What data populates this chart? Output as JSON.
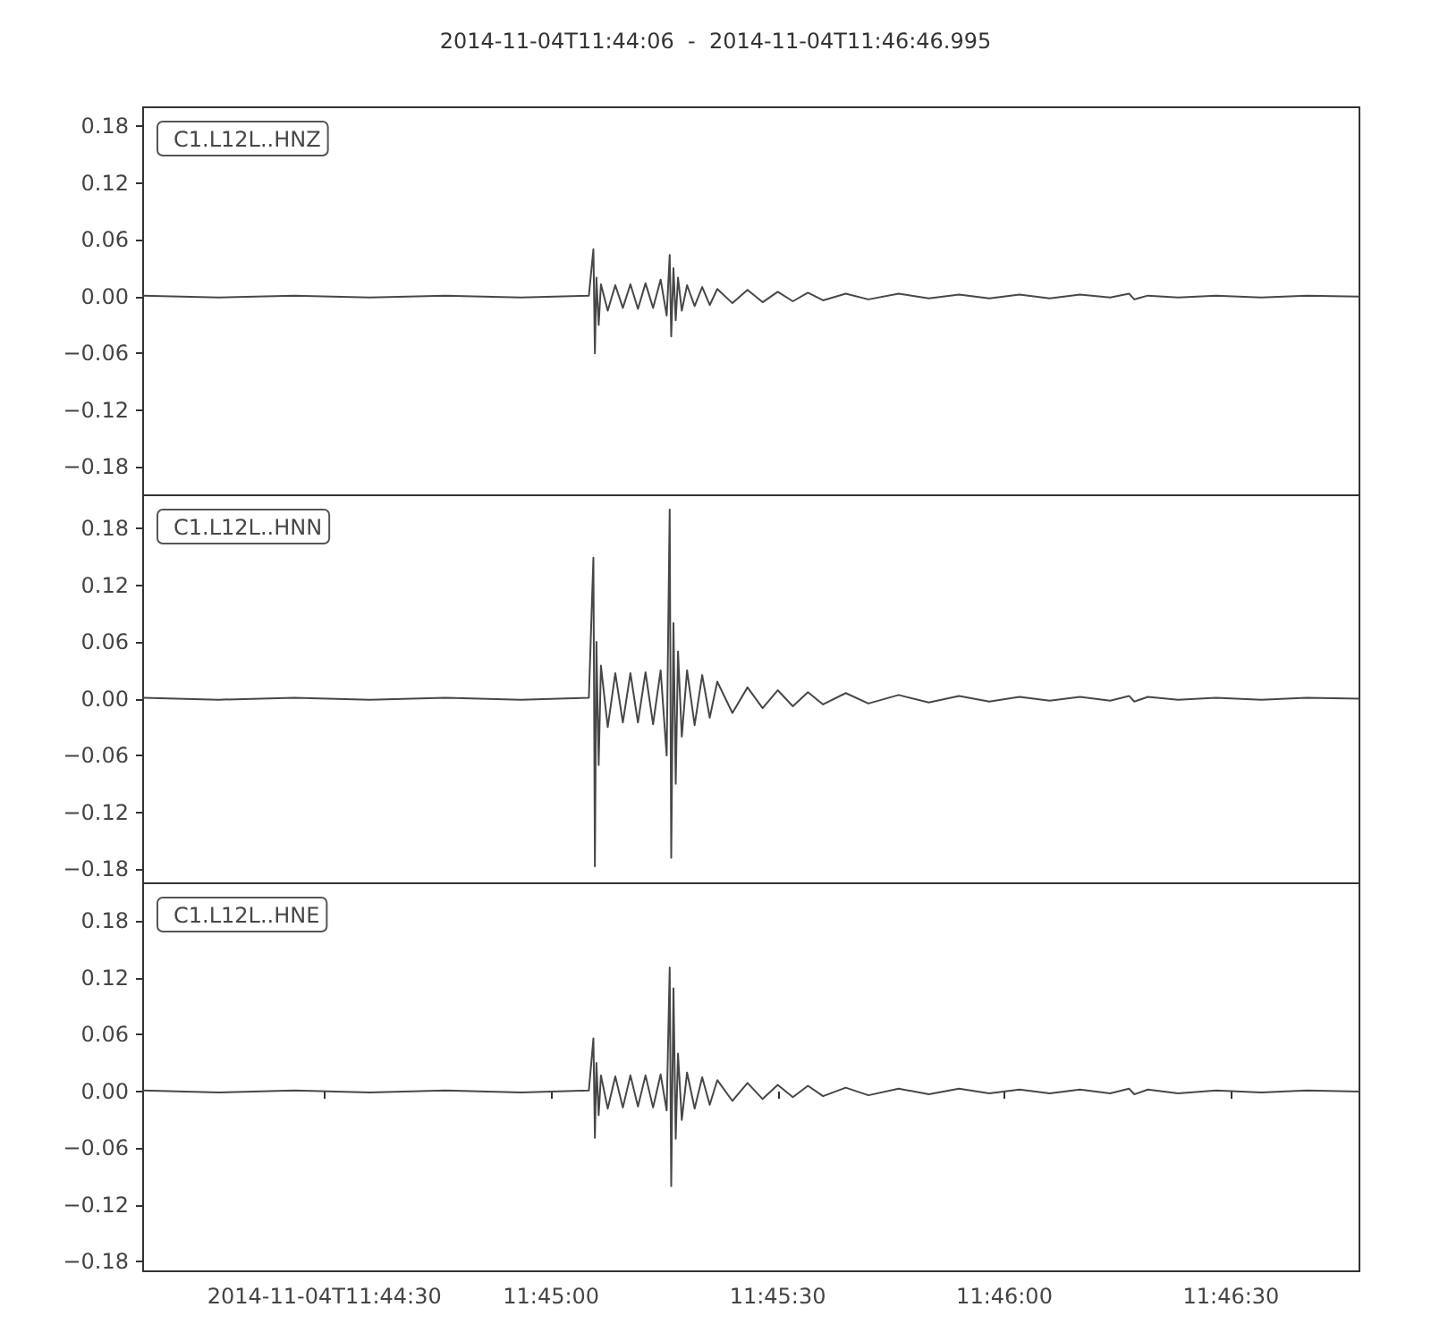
{
  "chart_data": [
    {
      "type": "line",
      "title": "2014-11-04T11:44:06  -  2014-11-04T11:46:46.995",
      "x": [
        11.735,
        11.737778,
        11.740556,
        11.743333,
        11.746111,
        11.748889,
        11.751389,
        11.751556,
        11.751611,
        11.751667,
        11.75175,
        11.751833,
        11.752083,
        11.752361,
        11.752639,
        11.752917,
        11.753194,
        11.753472,
        11.75375,
        11.754028,
        11.75425,
        11.754361,
        11.754417,
        11.7545,
        11.754583,
        11.754667,
        11.754806,
        11.755,
        11.755278,
        11.755556,
        11.755833,
        11.756111,
        11.756667,
        11.757222,
        11.757778,
        11.758333,
        11.758889,
        11.759444,
        11.76,
        11.760833,
        11.761667,
        11.762778,
        11.763889,
        11.765,
        11.766111,
        11.767222,
        11.768333,
        11.769444,
        11.770556,
        11.77125,
        11.771444,
        11.771944,
        11.773056,
        11.774444,
        11.776111,
        11.777778,
        11.779721
      ],
      "series": [
        {
          "name": "C1.L12L..HNZ",
          "color": "#474747",
          "values": [
            0.001,
            -0.001,
            0.001,
            -0.001,
            0.001,
            -0.001,
            0.001,
            0.05,
            -0.06,
            0.02,
            -0.03,
            0.013,
            -0.015,
            0.012,
            -0.012,
            0.013,
            -0.013,
            0.014,
            -0.012,
            0.018,
            -0.02,
            0.044,
            -0.042,
            0.03,
            -0.025,
            0.02,
            -0.015,
            0.012,
            -0.01,
            0.01,
            -0.009,
            0.008,
            -0.007,
            0.007,
            -0.006,
            0.005,
            -0.005,
            0.004,
            -0.004,
            0.003,
            -0.003,
            0.003,
            -0.002,
            0.002,
            -0.002,
            0.002,
            -0.002,
            0.002,
            -0.001,
            0.003,
            -0.003,
            0.001,
            -0.001,
            0.001,
            -0.001,
            0.001,
            0
          ]
        }
      ],
      "xlim": [
        11.735,
        11.779721
      ],
      "ylim": [
        -0.21,
        0.2
      ],
      "yticks": [
        {
          "value": -0.18,
          "label": "−0.18"
        },
        {
          "value": -0.12,
          "label": "−0.12"
        },
        {
          "value": -0.06,
          "label": "−0.06"
        },
        {
          "value": 0,
          "label": "0.00"
        },
        0.06,
        0.12,
        0.18
      ],
      "tick_labels": "y",
      "legend": "top left"
    },
    {
      "type": "line",
      "x": [
        11.735,
        11.737778,
        11.740556,
        11.743333,
        11.746111,
        11.748889,
        11.751389,
        11.751556,
        11.751611,
        11.751667,
        11.75175,
        11.751833,
        11.752083,
        11.752361,
        11.752639,
        11.752917,
        11.753194,
        11.753472,
        11.75375,
        11.754028,
        11.75425,
        11.754361,
        11.754417,
        11.7545,
        11.754583,
        11.754667,
        11.754806,
        11.755,
        11.755278,
        11.755556,
        11.755833,
        11.756111,
        11.756667,
        11.757222,
        11.757778,
        11.758333,
        11.758889,
        11.759444,
        11.76,
        11.760833,
        11.761667,
        11.762778,
        11.763889,
        11.765,
        11.766111,
        11.767222,
        11.768333,
        11.769444,
        11.770556,
        11.77125,
        11.771444,
        11.771944,
        11.773056,
        11.774444,
        11.776111,
        11.777778,
        11.779721
      ],
      "series": [
        {
          "name": "C1.L12L..HNN",
          "color": "#474747",
          "values": [
            0.001,
            -0.001,
            0.001,
            -0.001,
            0.001,
            -0.001,
            0.001,
            0.149,
            -0.177,
            0.06,
            -0.07,
            0.035,
            -0.03,
            0.027,
            -0.025,
            0.027,
            -0.025,
            0.028,
            -0.027,
            0.03,
            -0.06,
            0.2,
            -0.168,
            0.08,
            -0.09,
            0.05,
            -0.04,
            0.03,
            -0.028,
            0.025,
            -0.02,
            0.018,
            -0.015,
            0.012,
            -0.01,
            0.009,
            -0.008,
            0.007,
            -0.006,
            0.006,
            -0.005,
            0.004,
            -0.004,
            0.003,
            -0.003,
            0.002,
            -0.002,
            0.002,
            -0.002,
            0.003,
            -0.003,
            0.002,
            -0.001,
            0.001,
            -0.001,
            0.001,
            0
          ]
        }
      ],
      "xlim": [
        11.735,
        11.779721
      ],
      "ylim": [
        -0.195,
        0.215
      ],
      "yticks": [
        {
          "value": -0.18,
          "label": "−0.18"
        },
        {
          "value": -0.12,
          "label": "−0.12"
        },
        {
          "value": -0.06,
          "label": "−0.06"
        },
        {
          "value": 0,
          "label": "0.00"
        },
        0.06,
        0.12,
        0.18
      ],
      "tick_labels": "y",
      "legend": "top left"
    },
    {
      "type": "line",
      "x": [
        11.735,
        11.737778,
        11.740556,
        11.743333,
        11.746111,
        11.748889,
        11.751389,
        11.751556,
        11.751611,
        11.751667,
        11.75175,
        11.751833,
        11.752083,
        11.752361,
        11.752639,
        11.752917,
        11.753194,
        11.753472,
        11.75375,
        11.754028,
        11.75425,
        11.754361,
        11.754417,
        11.7545,
        11.754583,
        11.754667,
        11.754806,
        11.755,
        11.755278,
        11.755556,
        11.755833,
        11.756111,
        11.756667,
        11.757222,
        11.757778,
        11.758333,
        11.758889,
        11.759444,
        11.76,
        11.760833,
        11.761667,
        11.762778,
        11.763889,
        11.765,
        11.766111,
        11.767222,
        11.768333,
        11.769444,
        11.770556,
        11.77125,
        11.771444,
        11.771944,
        11.773056,
        11.774444,
        11.776111,
        11.777778,
        11.779721
      ],
      "series": [
        {
          "name": "C1.L12L..HNE",
          "color": "#474747",
          "values": [
            0.001,
            -0.001,
            0.001,
            -0.001,
            0.001,
            -0.001,
            0.001,
            0.056,
            -0.049,
            0.03,
            -0.025,
            0.017,
            -0.018,
            0.016,
            -0.017,
            0.017,
            -0.016,
            0.017,
            -0.017,
            0.018,
            -0.02,
            0.131,
            -0.1,
            0.109,
            -0.05,
            0.04,
            -0.03,
            0.02,
            -0.018,
            0.015,
            -0.014,
            0.012,
            -0.01,
            0.009,
            -0.008,
            0.007,
            -0.006,
            0.006,
            -0.005,
            0.004,
            -0.004,
            0.003,
            -0.003,
            0.003,
            -0.002,
            0.002,
            -0.002,
            0.002,
            -0.002,
            0.003,
            -0.003,
            0.002,
            -0.002,
            0.001,
            -0.001,
            0.001,
            0
          ]
        }
      ],
      "xlim": [
        11.735,
        11.779721
      ],
      "xticks": [
        {
          "value": 11.741667,
          "label": "2014-11-04T11:44:30"
        },
        {
          "value": 11.75,
          "label": "11:45:00"
        },
        {
          "value": 11.758333,
          "label": "11:45:30"
        },
        {
          "value": 11.766667,
          "label": "11:46:00"
        },
        {
          "value": 11.775,
          "label": "11:46:30"
        }
      ],
      "ylim": [
        -0.19,
        0.22
      ],
      "yticks": [
        {
          "value": -0.18,
          "label": "−0.18"
        },
        {
          "value": -0.12,
          "label": "−0.12"
        },
        {
          "value": -0.06,
          "label": "−0.06"
        },
        {
          "value": 0,
          "label": "0.00"
        },
        0.06,
        0.12,
        0.18
      ],
      "legend": "top left"
    }
  ]
}
